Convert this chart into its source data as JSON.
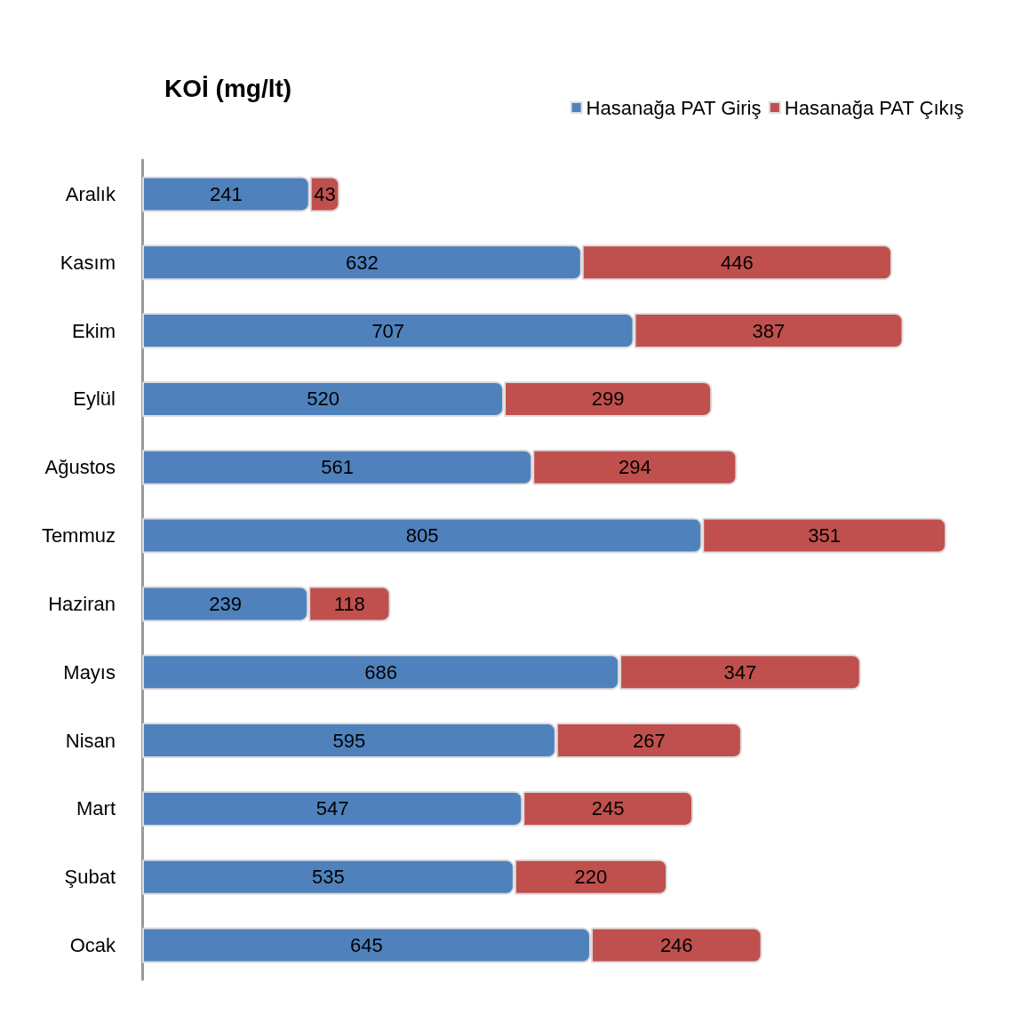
{
  "chart_data": {
    "type": "bar",
    "title": "KOİ (mg/lt)",
    "orientation": "horizontal",
    "stacked": true,
    "data_labels": true,
    "legend": "top right",
    "categories": [
      "Aralık",
      "Kasım",
      "Ekim",
      "Eylül",
      "Ağustos",
      "Temmuz",
      "Haziran",
      "Mayıs",
      "Nisan",
      "Mart",
      "Şubat",
      "Ocak"
    ],
    "series": [
      {
        "name": "Hasanağa PAT Giriş",
        "color": "#4f81bd",
        "values": [
          241,
          632,
          707,
          520,
          561,
          805,
          239,
          686,
          595,
          547,
          535,
          645
        ]
      },
      {
        "name": "Hasanağa PAT Çıkış",
        "color": "#c0504d",
        "values": [
          43,
          446,
          387,
          299,
          294,
          351,
          118,
          347,
          267,
          245,
          220,
          246
        ]
      }
    ]
  }
}
